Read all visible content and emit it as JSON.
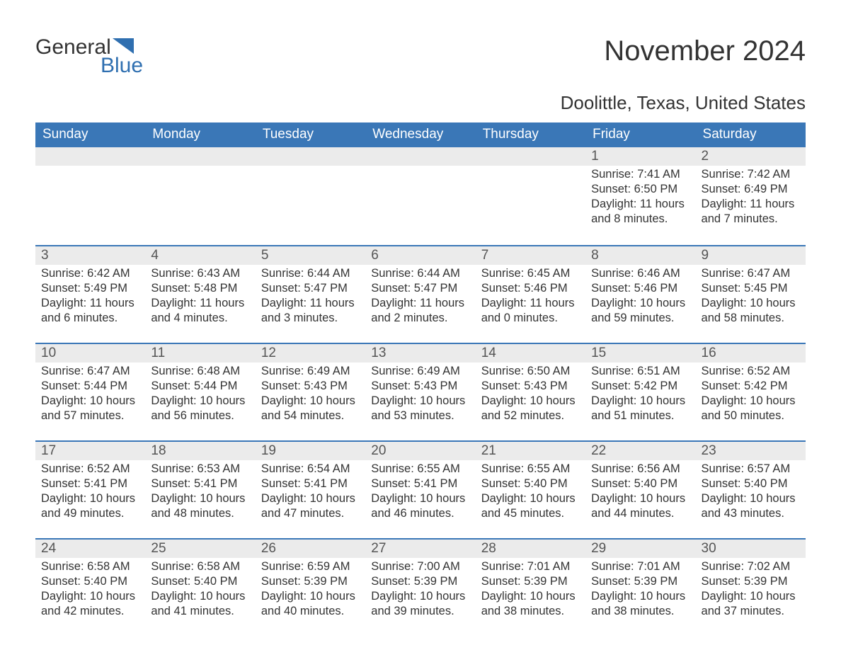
{
  "logo": {
    "text1": "General",
    "text2": "Blue",
    "shape_color": "#2f6fb0"
  },
  "title": "November 2024",
  "location": "Doolittle, Texas, United States",
  "colors": {
    "header_bg": "#3a77b7",
    "header_text": "#ffffff",
    "daynum_bg": "#ebebeb",
    "week_border": "#3a77b7",
    "body_text": "#333333",
    "logo_blue": "#2f6fb0"
  },
  "weekdays": [
    "Sunday",
    "Monday",
    "Tuesday",
    "Wednesday",
    "Thursday",
    "Friday",
    "Saturday"
  ],
  "weeks": [
    [
      {
        "n": "",
        "sunrise": "",
        "sunset": "",
        "daylight": ""
      },
      {
        "n": "",
        "sunrise": "",
        "sunset": "",
        "daylight": ""
      },
      {
        "n": "",
        "sunrise": "",
        "sunset": "",
        "daylight": ""
      },
      {
        "n": "",
        "sunrise": "",
        "sunset": "",
        "daylight": ""
      },
      {
        "n": "",
        "sunrise": "",
        "sunset": "",
        "daylight": ""
      },
      {
        "n": "1",
        "sunrise": "Sunrise: 7:41 AM",
        "sunset": "Sunset: 6:50 PM",
        "daylight": "Daylight: 11 hours and 8 minutes."
      },
      {
        "n": "2",
        "sunrise": "Sunrise: 7:42 AM",
        "sunset": "Sunset: 6:49 PM",
        "daylight": "Daylight: 11 hours and 7 minutes."
      }
    ],
    [
      {
        "n": "3",
        "sunrise": "Sunrise: 6:42 AM",
        "sunset": "Sunset: 5:49 PM",
        "daylight": "Daylight: 11 hours and 6 minutes."
      },
      {
        "n": "4",
        "sunrise": "Sunrise: 6:43 AM",
        "sunset": "Sunset: 5:48 PM",
        "daylight": "Daylight: 11 hours and 4 minutes."
      },
      {
        "n": "5",
        "sunrise": "Sunrise: 6:44 AM",
        "sunset": "Sunset: 5:47 PM",
        "daylight": "Daylight: 11 hours and 3 minutes."
      },
      {
        "n": "6",
        "sunrise": "Sunrise: 6:44 AM",
        "sunset": "Sunset: 5:47 PM",
        "daylight": "Daylight: 11 hours and 2 minutes."
      },
      {
        "n": "7",
        "sunrise": "Sunrise: 6:45 AM",
        "sunset": "Sunset: 5:46 PM",
        "daylight": "Daylight: 11 hours and 0 minutes."
      },
      {
        "n": "8",
        "sunrise": "Sunrise: 6:46 AM",
        "sunset": "Sunset: 5:46 PM",
        "daylight": "Daylight: 10 hours and 59 minutes."
      },
      {
        "n": "9",
        "sunrise": "Sunrise: 6:47 AM",
        "sunset": "Sunset: 5:45 PM",
        "daylight": "Daylight: 10 hours and 58 minutes."
      }
    ],
    [
      {
        "n": "10",
        "sunrise": "Sunrise: 6:47 AM",
        "sunset": "Sunset: 5:44 PM",
        "daylight": "Daylight: 10 hours and 57 minutes."
      },
      {
        "n": "11",
        "sunrise": "Sunrise: 6:48 AM",
        "sunset": "Sunset: 5:44 PM",
        "daylight": "Daylight: 10 hours and 56 minutes."
      },
      {
        "n": "12",
        "sunrise": "Sunrise: 6:49 AM",
        "sunset": "Sunset: 5:43 PM",
        "daylight": "Daylight: 10 hours and 54 minutes."
      },
      {
        "n": "13",
        "sunrise": "Sunrise: 6:49 AM",
        "sunset": "Sunset: 5:43 PM",
        "daylight": "Daylight: 10 hours and 53 minutes."
      },
      {
        "n": "14",
        "sunrise": "Sunrise: 6:50 AM",
        "sunset": "Sunset: 5:43 PM",
        "daylight": "Daylight: 10 hours and 52 minutes."
      },
      {
        "n": "15",
        "sunrise": "Sunrise: 6:51 AM",
        "sunset": "Sunset: 5:42 PM",
        "daylight": "Daylight: 10 hours and 51 minutes."
      },
      {
        "n": "16",
        "sunrise": "Sunrise: 6:52 AM",
        "sunset": "Sunset: 5:42 PM",
        "daylight": "Daylight: 10 hours and 50 minutes."
      }
    ],
    [
      {
        "n": "17",
        "sunrise": "Sunrise: 6:52 AM",
        "sunset": "Sunset: 5:41 PM",
        "daylight": "Daylight: 10 hours and 49 minutes."
      },
      {
        "n": "18",
        "sunrise": "Sunrise: 6:53 AM",
        "sunset": "Sunset: 5:41 PM",
        "daylight": "Daylight: 10 hours and 48 minutes."
      },
      {
        "n": "19",
        "sunrise": "Sunrise: 6:54 AM",
        "sunset": "Sunset: 5:41 PM",
        "daylight": "Daylight: 10 hours and 47 minutes."
      },
      {
        "n": "20",
        "sunrise": "Sunrise: 6:55 AM",
        "sunset": "Sunset: 5:41 PM",
        "daylight": "Daylight: 10 hours and 46 minutes."
      },
      {
        "n": "21",
        "sunrise": "Sunrise: 6:55 AM",
        "sunset": "Sunset: 5:40 PM",
        "daylight": "Daylight: 10 hours and 45 minutes."
      },
      {
        "n": "22",
        "sunrise": "Sunrise: 6:56 AM",
        "sunset": "Sunset: 5:40 PM",
        "daylight": "Daylight: 10 hours and 44 minutes."
      },
      {
        "n": "23",
        "sunrise": "Sunrise: 6:57 AM",
        "sunset": "Sunset: 5:40 PM",
        "daylight": "Daylight: 10 hours and 43 minutes."
      }
    ],
    [
      {
        "n": "24",
        "sunrise": "Sunrise: 6:58 AM",
        "sunset": "Sunset: 5:40 PM",
        "daylight": "Daylight: 10 hours and 42 minutes."
      },
      {
        "n": "25",
        "sunrise": "Sunrise: 6:58 AM",
        "sunset": "Sunset: 5:40 PM",
        "daylight": "Daylight: 10 hours and 41 minutes."
      },
      {
        "n": "26",
        "sunrise": "Sunrise: 6:59 AM",
        "sunset": "Sunset: 5:39 PM",
        "daylight": "Daylight: 10 hours and 40 minutes."
      },
      {
        "n": "27",
        "sunrise": "Sunrise: 7:00 AM",
        "sunset": "Sunset: 5:39 PM",
        "daylight": "Daylight: 10 hours and 39 minutes."
      },
      {
        "n": "28",
        "sunrise": "Sunrise: 7:01 AM",
        "sunset": "Sunset: 5:39 PM",
        "daylight": "Daylight: 10 hours and 38 minutes."
      },
      {
        "n": "29",
        "sunrise": "Sunrise: 7:01 AM",
        "sunset": "Sunset: 5:39 PM",
        "daylight": "Daylight: 10 hours and 38 minutes."
      },
      {
        "n": "30",
        "sunrise": "Sunrise: 7:02 AM",
        "sunset": "Sunset: 5:39 PM",
        "daylight": "Daylight: 10 hours and 37 minutes."
      }
    ]
  ]
}
